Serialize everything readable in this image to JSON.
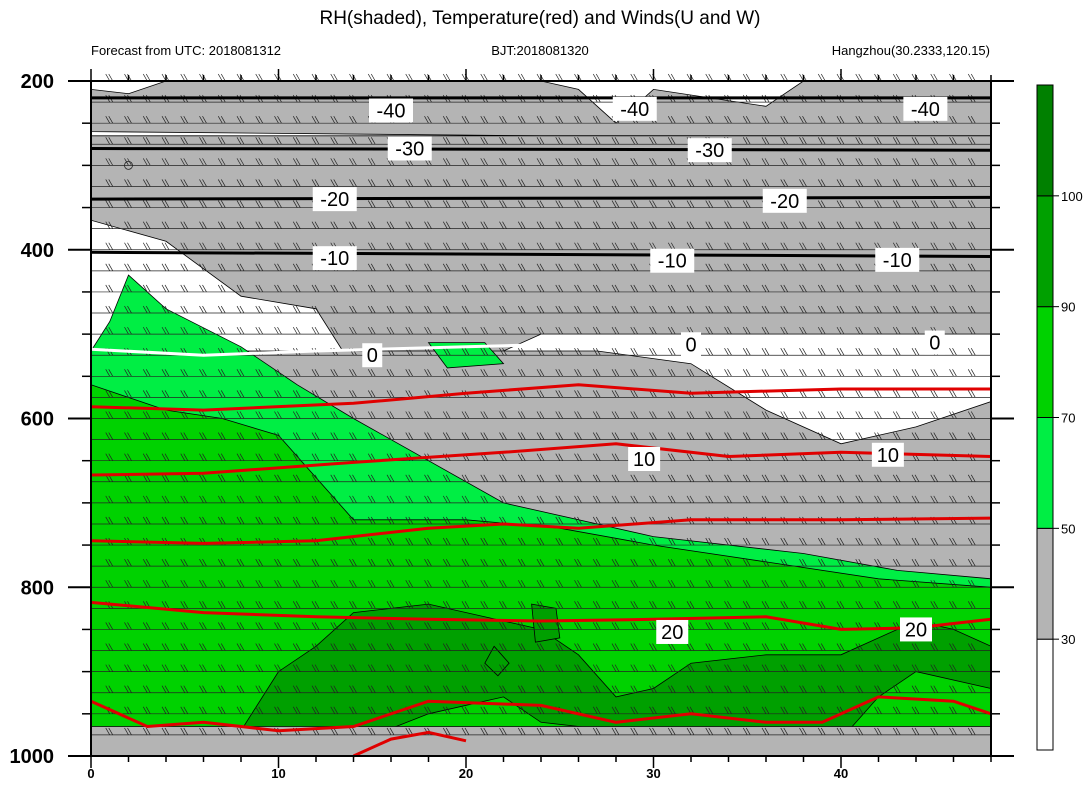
{
  "chart_data": {
    "type": "heatmap",
    "title": "RH(shaded), Temperature(red) and Winds(U and W)",
    "subtitle_left": "Forecast from UTC: 2018081312",
    "subtitle_center": "BJT:2018081320",
    "subtitle_right": "Hangzhou(30.2333,120.15)",
    "xlabel": "",
    "ylabel": "",
    "xlim": [
      0,
      48
    ],
    "ylim": [
      1000,
      200
    ],
    "x_ticks": [
      0,
      10,
      20,
      30,
      40
    ],
    "y_ticks": [
      200,
      400,
      600,
      800,
      1000
    ],
    "grid": false,
    "colorbar": {
      "placement": "right",
      "levels": [
        30,
        50,
        70,
        90,
        100
      ],
      "colors": [
        "#ffffff",
        "#b4b4b4",
        "#00ee44",
        "#00d200",
        "#00a000",
        "#008000"
      ]
    },
    "regions": [
      {
        "level": 30,
        "points": [
          [
            0,
            210
          ],
          [
            2,
            215
          ],
          [
            4,
            200
          ],
          [
            24,
            200
          ],
          [
            26,
            210
          ],
          [
            28,
            250
          ],
          [
            30,
            210
          ],
          [
            36,
            230
          ],
          [
            38,
            200
          ],
          [
            48,
            200
          ],
          [
            48,
            265
          ],
          [
            24,
            265
          ],
          [
            0,
            260
          ]
        ]
      },
      {
        "level": 30,
        "points": [
          [
            0,
            265
          ],
          [
            48,
            265
          ],
          [
            48,
            500
          ],
          [
            24,
            500
          ],
          [
            22,
            520
          ],
          [
            14,
            540
          ],
          [
            12,
            470
          ],
          [
            8,
            455
          ],
          [
            4,
            390
          ],
          [
            0,
            365
          ]
        ]
      },
      {
        "level": 30,
        "points": [
          [
            21,
            520
          ],
          [
            27,
            520
          ],
          [
            32,
            535
          ],
          [
            36,
            590
          ],
          [
            40,
            630
          ],
          [
            44,
            610
          ],
          [
            48,
            580
          ],
          [
            48,
            1000
          ],
          [
            0,
            1000
          ],
          [
            0,
            520
          ]
        ]
      },
      {
        "level": 50,
        "points": [
          [
            0,
            520
          ],
          [
            1,
            485
          ],
          [
            2,
            430
          ],
          [
            4,
            470
          ],
          [
            8,
            515
          ],
          [
            11,
            560
          ],
          [
            14,
            600
          ],
          [
            22,
            700
          ],
          [
            30,
            740
          ],
          [
            38,
            760
          ],
          [
            43,
            780
          ],
          [
            48,
            790
          ],
          [
            48,
            980
          ],
          [
            0,
            985
          ]
        ]
      },
      {
        "level": 50,
        "points": [
          [
            18,
            510
          ],
          [
            21,
            510
          ],
          [
            22,
            535
          ],
          [
            19,
            540
          ]
        ]
      },
      {
        "level": 70,
        "points": [
          [
            0,
            560
          ],
          [
            4,
            590
          ],
          [
            7,
            600
          ],
          [
            10,
            620
          ],
          [
            14,
            720
          ],
          [
            17,
            720
          ],
          [
            20,
            720
          ],
          [
            25,
            730
          ],
          [
            30,
            750
          ],
          [
            36,
            770
          ],
          [
            42,
            790
          ],
          [
            48,
            800
          ],
          [
            48,
            975
          ],
          [
            0,
            985
          ]
        ]
      },
      {
        "level": 90,
        "points": [
          [
            8,
            970
          ],
          [
            10,
            900
          ],
          [
            12,
            870
          ],
          [
            14,
            830
          ],
          [
            18,
            820
          ],
          [
            22,
            840
          ],
          [
            24,
            850
          ],
          [
            26,
            880
          ],
          [
            28,
            930
          ],
          [
            30,
            920
          ],
          [
            32,
            890
          ],
          [
            36,
            880
          ],
          [
            40,
            880
          ],
          [
            44,
            840
          ],
          [
            46,
            850
          ],
          [
            48,
            870
          ],
          [
            48,
            920
          ],
          [
            44,
            900
          ],
          [
            42,
            930
          ],
          [
            40,
            980
          ],
          [
            36,
            985
          ],
          [
            32,
            975
          ],
          [
            28,
            970
          ],
          [
            24,
            960
          ],
          [
            22,
            930
          ],
          [
            18,
            950
          ],
          [
            14,
            985
          ],
          [
            10,
            985
          ]
        ]
      },
      {
        "level": 90,
        "points": [
          [
            23.5,
            820
          ],
          [
            24.8,
            825
          ],
          [
            25,
            860
          ],
          [
            23.7,
            865
          ]
        ]
      },
      {
        "level": 90,
        "points": [
          [
            21.5,
            870
          ],
          [
            22.3,
            890
          ],
          [
            21.7,
            905
          ],
          [
            21,
            890
          ]
        ]
      },
      {
        "level": 30,
        "points": [
          [
            0,
            965
          ],
          [
            48,
            965
          ],
          [
            48,
            1000
          ],
          [
            0,
            1000
          ]
        ]
      }
    ],
    "series": [
      {
        "name": "-40",
        "color": "#000000",
        "points": [
          [
            0,
            220
          ],
          [
            48,
            220
          ]
        ],
        "labels": [
          [
            16,
            235
          ],
          [
            29,
            233
          ],
          [
            44.5,
            233
          ]
        ]
      },
      {
        "name": "-30",
        "color": "#000000",
        "points": [
          [
            0,
            280
          ],
          [
            48,
            282
          ]
        ],
        "labels": [
          [
            17,
            280
          ],
          [
            33,
            282
          ]
        ]
      },
      {
        "name": "-20",
        "color": "#000000",
        "points": [
          [
            0,
            340
          ],
          [
            48,
            338
          ]
        ],
        "labels": [
          [
            13,
            340
          ],
          [
            37,
            342
          ]
        ]
      },
      {
        "name": "-10",
        "color": "#000000",
        "points": [
          [
            0,
            403
          ],
          [
            48,
            408
          ]
        ],
        "labels": [
          [
            13,
            410
          ],
          [
            31,
            413
          ],
          [
            43,
            412
          ]
        ]
      },
      {
        "name": "0",
        "color": "#ffffff",
        "points": [
          [
            0,
            518
          ],
          [
            6,
            525
          ],
          [
            12,
            520
          ],
          [
            20,
            515
          ],
          [
            25,
            512
          ]
        ],
        "labels": [
          [
            15,
            525
          ],
          [
            32,
            512
          ],
          [
            45,
            510
          ]
        ]
      },
      {
        "name": "10",
        "color": "#e00000",
        "points": [
          [
            0,
            586
          ],
          [
            6,
            590
          ],
          [
            14,
            582
          ],
          [
            20,
            570
          ],
          [
            26,
            560
          ],
          [
            32,
            570
          ],
          [
            40,
            565
          ],
          [
            48,
            565
          ]
        ],
        "labels": []
      },
      {
        "name": "10",
        "color": "#e00000",
        "points": [
          [
            0,
            667
          ],
          [
            6,
            665
          ],
          [
            14,
            652
          ],
          [
            22,
            640
          ],
          [
            28,
            630
          ],
          [
            34,
            645
          ],
          [
            40,
            640
          ],
          [
            48,
            645
          ]
        ],
        "labels": [
          [
            1405,
            655
          ],
          [
            29.5,
            648
          ],
          [
            42.5,
            643
          ]
        ]
      },
      {
        "name": "",
        "color": "#e00000",
        "points": [
          [
            0,
            745
          ],
          [
            6,
            748
          ],
          [
            12,
            745
          ],
          [
            18,
            730
          ],
          [
            22,
            725
          ],
          [
            26,
            730
          ],
          [
            32,
            720
          ],
          [
            40,
            720
          ],
          [
            48,
            718
          ]
        ],
        "labels": []
      },
      {
        "name": "20",
        "color": "#e00000",
        "points": [
          [
            0,
            818
          ],
          [
            6,
            830
          ],
          [
            12,
            835
          ],
          [
            18,
            838
          ],
          [
            24,
            840
          ],
          [
            30,
            838
          ],
          [
            36,
            835
          ],
          [
            40,
            850
          ],
          [
            44,
            848
          ],
          [
            48,
            838
          ]
        ],
        "labels": [
          [
            14030,
            838
          ],
          [
            31,
            853
          ],
          [
            44,
            850
          ]
        ]
      },
      {
        "name": "",
        "color": "#e00000",
        "points": [
          [
            0,
            935
          ],
          [
            3,
            965
          ],
          [
            6,
            960
          ],
          [
            10,
            970
          ],
          [
            14,
            965
          ],
          [
            18,
            935
          ],
          [
            24,
            940
          ],
          [
            28,
            960
          ],
          [
            32,
            950
          ],
          [
            36,
            960
          ],
          [
            39,
            960
          ],
          [
            42,
            930
          ],
          [
            46,
            935
          ],
          [
            48,
            950
          ]
        ],
        "labels": []
      },
      {
        "name": "",
        "color": "#e00000",
        "points": [
          [
            14,
            1000
          ],
          [
            16,
            980
          ],
          [
            18,
            972
          ],
          [
            20,
            982
          ]
        ],
        "labels": []
      }
    ]
  }
}
